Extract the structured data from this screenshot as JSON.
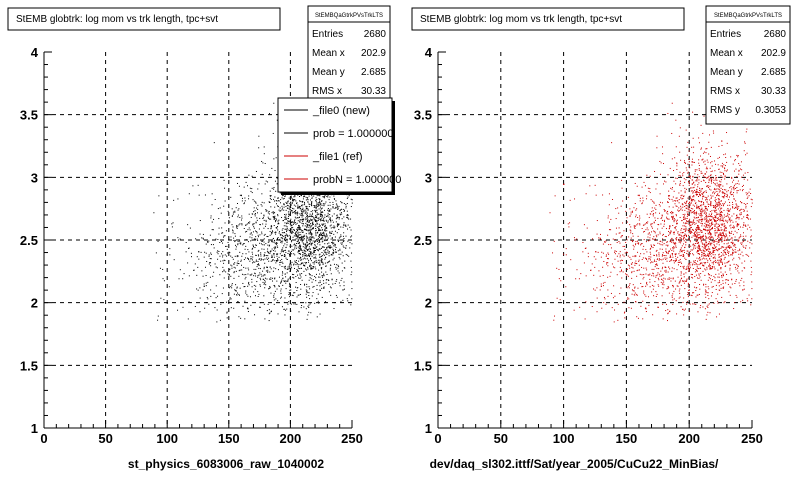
{
  "chart_data": [
    {
      "type": "scatter",
      "title": "StEMB globtrk: log mom vs trk length, tpc+svt",
      "xlabel": "st_physics_6083006_raw_1040002",
      "xlim": [
        0,
        250
      ],
      "ylim": [
        1,
        4
      ],
      "xticks": [
        "0",
        "50",
        "100",
        "150",
        "200",
        "250"
      ],
      "yticks": [
        "1",
        "1.5",
        "2",
        "2.5",
        "3",
        "3.5",
        "4"
      ],
      "grid": true,
      "color": "#000000",
      "points_n": 2680,
      "stats": {
        "title": "StEMBQaGtrkPVsTrkLTS",
        "rows": [
          {
            "label": "Entries",
            "value": "2680"
          },
          {
            "label": "Mean x",
            "value": "202.9"
          },
          {
            "label": "Mean y",
            "value": "2.685"
          },
          {
            "label": "RMS x",
            "value": "30.33"
          }
        ]
      },
      "legend": {
        "placement": "top-right",
        "entries": [
          {
            "label": "_file0 (new)",
            "color": "#000000"
          },
          {
            "label": "prob = 1.000000",
            "color": "#000000"
          },
          {
            "label": "_file1 (ref)",
            "color": "#cc0000"
          },
          {
            "label": "probN = 1.000000",
            "color": "#cc0000"
          }
        ]
      }
    },
    {
      "type": "scatter",
      "title": "StEMB globtrk: log mom vs trk length, tpc+svt",
      "xlabel": "dev/daq_sl302.ittf/Sat/year_2005/CuCu22_MinBias/",
      "xlim": [
        0,
        250
      ],
      "ylim": [
        1,
        4
      ],
      "xticks": [
        "0",
        "50",
        "100",
        "150",
        "200",
        "250"
      ],
      "yticks": [
        "1",
        "1.5",
        "2",
        "2.5",
        "3",
        "3.5",
        "4"
      ],
      "grid": true,
      "color": "#cc0000",
      "points_n": 2680,
      "stats": {
        "title": "StEMBQaGtrkPVsTrkLTS",
        "rows": [
          {
            "label": "Entries",
            "value": "2680"
          },
          {
            "label": "Mean x",
            "value": "202.9"
          },
          {
            "label": "Mean y",
            "value": "2.685"
          },
          {
            "label": "RMS x",
            "value": "30.33"
          },
          {
            "label": "RMS y",
            "value": "0.3053"
          }
        ]
      }
    }
  ]
}
